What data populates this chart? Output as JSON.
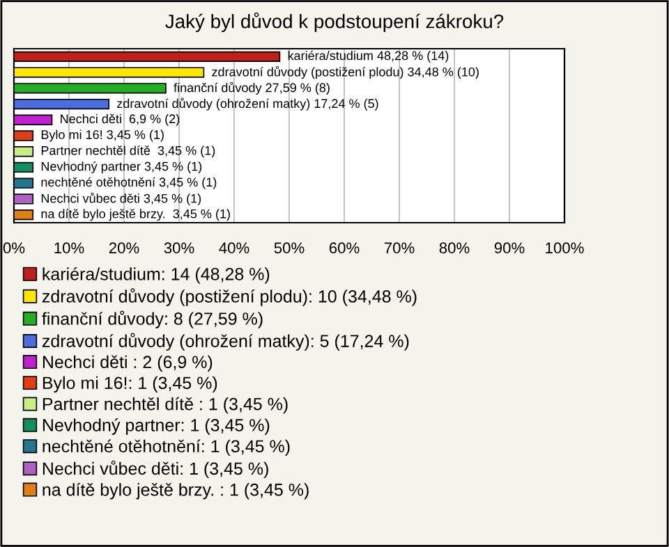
{
  "chart_data": {
    "type": "bar",
    "orientation": "horizontal",
    "title": "Jaký byl důvod k podstoupení zákroku?",
    "categories": [
      null,
      null,
      null,
      null,
      null,
      null,
      null,
      null,
      null,
      null,
      null
    ],
    "series": [
      {
        "name": "kariéra/studium: 14 (48,28 %)",
        "color": "#c0201a",
        "values": [
          48.28,
          null,
          null,
          null,
          null,
          null,
          null,
          null,
          null,
          null,
          null
        ],
        "value_labels": [
          "kariéra/studium 48,28 % (14)",
          null,
          null,
          null,
          null,
          null,
          null,
          null,
          null,
          null,
          null
        ]
      },
      {
        "name": "zdravotní důvody (postižení plodu): 10 (34,48 %)",
        "color": "#ffe600",
        "values": [
          null,
          34.48,
          null,
          null,
          null,
          null,
          null,
          null,
          null,
          null,
          null
        ],
        "value_labels": [
          null,
          "zdravotní důvody (postižení plodu) 34,48 % (10)",
          null,
          null,
          null,
          null,
          null,
          null,
          null,
          null,
          null
        ]
      },
      {
        "name": "finanční důvody: 8 (27,59 %)",
        "color": "#22b022",
        "values": [
          null,
          null,
          27.59,
          null,
          null,
          null,
          null,
          null,
          null,
          null,
          null
        ],
        "value_labels": [
          null,
          null,
          "finanční důvody 27,59 % (8)",
          null,
          null,
          null,
          null,
          null,
          null,
          null,
          null
        ]
      },
      {
        "name": "zdravotní důvody (ohrožení matky): 5 (17,24 %)",
        "color": "#4a6ee0",
        "values": [
          null,
          null,
          null,
          17.24,
          null,
          null,
          null,
          null,
          null,
          null,
          null
        ],
        "value_labels": [
          null,
          null,
          null,
          "zdravotní důvody (ohrožení matky) 17,24 % (5)",
          null,
          null,
          null,
          null,
          null,
          null,
          null
        ]
      },
      {
        "name": "Nechci děti : 2 (6,9 %)",
        "color": "#c020d0",
        "values": [
          null,
          null,
          null,
          null,
          6.9,
          null,
          null,
          null,
          null,
          null,
          null
        ],
        "value_labels": [
          null,
          null,
          null,
          null,
          "Nechci děti  6,9 % (2)",
          null,
          null,
          null,
          null,
          null,
          null
        ]
      },
      {
        "name": "Bylo mi 16!: 1 (3,45 %)",
        "color": "#e04010",
        "values": [
          null,
          null,
          null,
          null,
          null,
          3.45,
          null,
          null,
          null,
          null,
          null
        ],
        "value_labels": [
          null,
          null,
          null,
          null,
          null,
          "Bylo mi 16! 3,45 % (1)",
          null,
          null,
          null,
          null,
          null
        ]
      },
      {
        "name": "Partner nechtěl dítě : 1 (3,45 %)",
        "color": "#c8f080",
        "values": [
          null,
          null,
          null,
          null,
          null,
          null,
          3.45,
          null,
          null,
          null,
          null
        ],
        "value_labels": [
          null,
          null,
          null,
          null,
          null,
          null,
          "Partner nechtěl dítě  3,45 % (1)",
          null,
          null,
          null,
          null
        ]
      },
      {
        "name": "Nevhodný partner: 1 (3,45 %)",
        "color": "#109060",
        "values": [
          null,
          null,
          null,
          null,
          null,
          null,
          null,
          3.45,
          null,
          null,
          null
        ],
        "value_labels": [
          null,
          null,
          null,
          null,
          null,
          null,
          null,
          "Nevhodný partner 3,45 % (1)",
          null,
          null,
          null
        ]
      },
      {
        "name": "nechtěné otěhotnění: 1 (3,45 %)",
        "color": "#207890",
        "values": [
          null,
          null,
          null,
          null,
          null,
          null,
          null,
          null,
          3.45,
          null,
          null
        ],
        "value_labels": [
          null,
          null,
          null,
          null,
          null,
          null,
          null,
          null,
          "nechtěné otěhotnění 3,45 % (1)",
          null,
          null
        ]
      },
      {
        "name": "Nechci vůbec děti: 1 (3,45 %)",
        "color": "#b060c0",
        "values": [
          null,
          null,
          null,
          null,
          null,
          null,
          null,
          null,
          null,
          3.45,
          null
        ],
        "value_labels": [
          null,
          null,
          null,
          null,
          null,
          null,
          null,
          null,
          null,
          "Nechci vůbec děti 3,45 % (1)",
          null
        ]
      },
      {
        "name": "na dítě bylo ještě brzy. : 1 (3,45 %)",
        "color": "#e08010",
        "values": [
          null,
          null,
          null,
          null,
          null,
          null,
          null,
          null,
          null,
          null,
          3.45
        ],
        "value_labels": [
          null,
          null,
          null,
          null,
          null,
          null,
          null,
          null,
          null,
          null,
          "na dítě bylo ještě brzy.  3,45 % (1)"
        ]
      }
    ],
    "xlim": [
      0,
      100
    ],
    "xticks": [
      {
        "value": 0,
        "label": "0%"
      },
      {
        "value": 10,
        "label": "10%"
      },
      {
        "value": 20,
        "label": "20%"
      },
      {
        "value": 30,
        "label": "30%"
      },
      {
        "value": 40,
        "label": "40%"
      },
      {
        "value": 50,
        "label": "50%"
      },
      {
        "value": 60,
        "label": "60%"
      },
      {
        "value": 70,
        "label": "70%"
      },
      {
        "value": 80,
        "label": "80%"
      },
      {
        "value": 90,
        "label": "90%"
      },
      {
        "value": 100,
        "label": "100%"
      }
    ],
    "tick_labels": "x",
    "grid": "x",
    "legend": "bottom"
  }
}
